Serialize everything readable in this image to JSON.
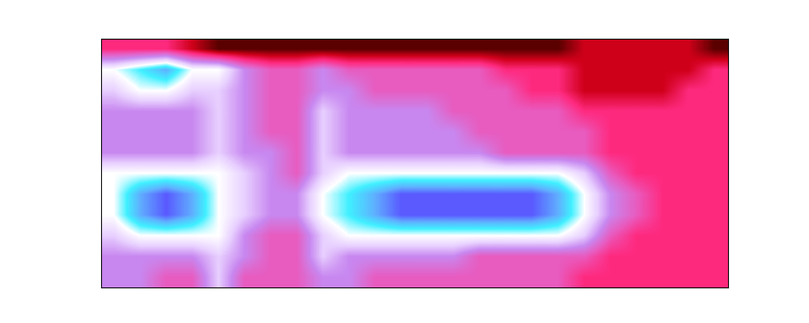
{
  "chart_data": {
    "type": "heatmap",
    "tick_labels": false,
    "cells": [
      [
        2,
        2,
        2,
        1,
        0,
        0,
        0,
        0,
        0,
        0,
        0,
        0,
        0,
        0,
        0,
        0,
        0,
        0,
        1,
        1,
        1,
        1,
        1,
        0
      ],
      [
        6,
        7,
        8,
        6,
        6,
        4,
        3,
        3,
        4,
        3,
        3,
        3,
        3,
        3,
        3,
        2,
        2,
        2,
        1,
        1,
        1,
        1,
        1,
        2
      ],
      [
        5,
        6,
        6,
        5,
        5,
        4,
        3,
        3,
        4,
        4,
        3,
        3,
        3,
        3,
        3,
        3,
        2,
        2,
        1,
        1,
        1,
        1,
        2,
        2
      ],
      [
        4,
        4,
        4,
        4,
        5,
        4,
        3,
        3,
        5,
        4,
        4,
        4,
        4,
        3,
        3,
        3,
        3,
        3,
        2,
        2,
        2,
        2,
        2,
        2
      ],
      [
        4,
        4,
        4,
        4,
        5,
        4,
        3,
        3,
        5,
        4,
        4,
        4,
        4,
        4,
        3,
        3,
        3,
        3,
        3,
        2,
        2,
        2,
        2,
        2
      ],
      [
        4,
        4,
        4,
        4,
        5,
        4,
        4,
        3,
        5,
        4,
        4,
        4,
        4,
        4,
        4,
        3,
        3,
        3,
        3,
        2,
        2,
        2,
        2,
        2
      ],
      [
        6,
        6,
        6,
        6,
        6,
        5,
        4,
        3,
        5,
        6,
        6,
        6,
        6,
        6,
        6,
        6,
        6,
        6,
        5,
        3,
        2,
        2,
        2,
        2
      ],
      [
        6,
        8,
        9,
        8,
        6,
        5,
        4,
        4,
        6,
        7,
        8,
        9,
        9,
        9,
        9,
        9,
        9,
        8,
        6,
        4,
        3,
        2,
        2,
        2
      ],
      [
        6,
        8,
        9,
        8,
        6,
        5,
        4,
        4,
        6,
        7,
        8,
        9,
        9,
        9,
        9,
        9,
        9,
        8,
        6,
        4,
        3,
        2,
        2,
        2
      ],
      [
        5,
        6,
        6,
        6,
        6,
        4,
        3,
        3,
        5,
        6,
        6,
        6,
        6,
        6,
        6,
        6,
        6,
        6,
        5,
        3,
        2,
        2,
        2,
        2
      ],
      [
        4,
        4,
        4,
        4,
        5,
        4,
        3,
        3,
        5,
        4,
        4,
        4,
        4,
        4,
        3,
        3,
        3,
        3,
        3,
        2,
        2,
        2,
        2,
        2
      ],
      [
        4,
        4,
        3,
        3,
        5,
        3,
        3,
        3,
        4,
        4,
        3,
        3,
        3,
        3,
        3,
        3,
        3,
        3,
        2,
        2,
        2,
        2,
        2,
        2
      ]
    ]
  }
}
